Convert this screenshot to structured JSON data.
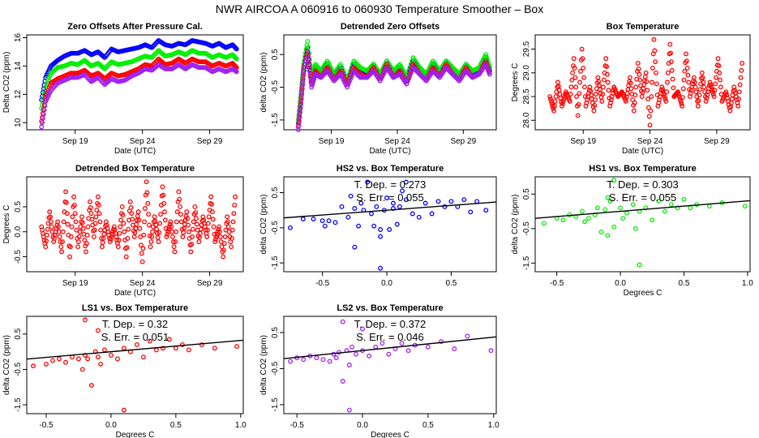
{
  "title": "NWR   AIRCOA A   060916 to 060930   Temperature Smoother – Box",
  "chart_data": [
    {
      "type": "line",
      "title": "Zero Offsets After Pressure Cal.",
      "xlabel": "Date (UTC)",
      "ylabel": "Delta CO2 (ppm)",
      "xlim": [
        15.4,
        31.5
      ],
      "ylim": [
        9.5,
        16.2
      ],
      "xticks": [
        19,
        24,
        29
      ],
      "xticklabels": [
        "Sep 19",
        "Sep 24",
        "Sep 29"
      ],
      "yticks": [
        10,
        12,
        14,
        16
      ],
      "yticklabels": [
        "10",
        "12",
        "14",
        "16"
      ],
      "x": [
        16.5,
        16.8,
        17.2,
        17.7,
        18.2,
        18.7,
        19.2,
        19.7,
        20.2,
        20.7,
        21.2,
        21.7,
        22.2,
        22.7,
        23.2,
        23.7,
        24.2,
        24.7,
        25.2,
        25.7,
        26.2,
        26.7,
        27.2,
        27.7,
        28.2,
        28.7,
        29.2,
        29.7,
        30.2,
        30.7,
        31.0
      ],
      "series": [
        {
          "name": "HS2",
          "color": "#0000ff",
          "values": [
            11.6,
            13.2,
            14.0,
            14.4,
            14.7,
            14.9,
            14.9,
            15.1,
            14.8,
            15.0,
            14.6,
            15.2,
            15.0,
            15.1,
            15.2,
            15.3,
            15.5,
            15.3,
            15.8,
            15.5,
            15.4,
            15.6,
            15.5,
            15.8,
            15.7,
            15.6,
            15.4,
            15.6,
            15.3,
            15.5,
            15.2
          ]
        },
        {
          "name": "HS1",
          "color": "#00ee00",
          "values": [
            11.0,
            12.5,
            13.5,
            13.9,
            14.0,
            14.2,
            14.1,
            14.4,
            14.0,
            14.2,
            13.8,
            14.3,
            14.1,
            14.2,
            14.3,
            14.5,
            14.7,
            14.6,
            15.1,
            14.7,
            14.8,
            15.0,
            14.8,
            15.1,
            14.9,
            14.9,
            14.6,
            14.8,
            14.6,
            14.8,
            14.5
          ]
        },
        {
          "name": "LS1",
          "color": "#ff0000",
          "values": [
            10.1,
            11.8,
            12.8,
            13.1,
            13.3,
            13.5,
            13.5,
            13.7,
            13.3,
            13.5,
            13.1,
            13.5,
            13.3,
            13.4,
            13.6,
            13.8,
            14.1,
            14.0,
            14.5,
            14.1,
            14.2,
            14.5,
            14.2,
            14.5,
            14.3,
            14.3,
            14.0,
            14.2,
            14.0,
            14.2,
            13.9
          ]
        },
        {
          "name": "LS2",
          "color": "#a020f0",
          "values": [
            9.7,
            11.5,
            12.3,
            12.8,
            13.0,
            13.2,
            13.2,
            13.4,
            12.9,
            13.2,
            12.7,
            13.1,
            12.9,
            13.0,
            13.3,
            13.5,
            13.8,
            13.7,
            14.1,
            13.8,
            13.8,
            14.1,
            13.8,
            14.1,
            13.9,
            13.9,
            13.6,
            13.8,
            13.6,
            13.8,
            13.6
          ]
        }
      ]
    },
    {
      "type": "line",
      "title": "Detrended Zero Offsets",
      "xlabel": "Date (UTC)",
      "ylabel": "delta CO2 (ppm)",
      "xlim": [
        15.4,
        31.5
      ],
      "ylim": [
        -1.8,
        1.1
      ],
      "xticks": [
        19,
        24,
        29
      ],
      "xticklabels": [
        "Sep 19",
        "Sep 24",
        "Sep 29"
      ],
      "yticks": [
        0.5,
        -0.5,
        -1.5
      ],
      "yticklabels": [
        "0.5",
        "-0.5",
        "-1.5"
      ],
      "x": [
        16.5,
        16.7,
        16.9,
        17.2,
        17.5,
        17.8,
        18.2,
        18.7,
        19.2,
        19.7,
        20.2,
        20.7,
        21.2,
        21.7,
        22.2,
        22.7,
        23.2,
        23.7,
        24.2,
        24.7,
        25.2,
        25.7,
        26.2,
        26.7,
        27.2,
        27.7,
        28.2,
        28.7,
        29.2,
        29.7,
        30.2,
        30.7,
        31.0
      ],
      "series": [
        {
          "name": "HS2",
          "color": "#0000ff",
          "values": [
            -1.6,
            -0.8,
            0.1,
            0.7,
            -0.3,
            0.1,
            -0.1,
            0.2,
            -0.2,
            0.1,
            -0.4,
            0.2,
            0.0,
            -0.1,
            0.2,
            -0.2,
            0.3,
            -0.1,
            0.1,
            -0.3,
            0.3,
            0.0,
            -0.2,
            0.2,
            -0.1,
            0.3,
            0.0,
            -0.2,
            0.2,
            -0.1,
            0.0,
            0.4,
            0.0
          ]
        },
        {
          "name": "HS1",
          "color": "#00ee00",
          "values": [
            -1.5,
            -0.7,
            0.2,
            0.9,
            -0.2,
            0.2,
            0.0,
            0.3,
            -0.1,
            0.2,
            -0.3,
            0.3,
            0.1,
            0.0,
            0.2,
            -0.1,
            0.3,
            0.0,
            0.2,
            -0.2,
            0.4,
            0.1,
            -0.1,
            0.3,
            0.0,
            0.3,
            0.1,
            -0.1,
            0.2,
            0.0,
            0.1,
            0.5,
            0.1
          ]
        },
        {
          "name": "LS1",
          "color": "#ff0000",
          "values": [
            -1.7,
            -0.9,
            0.0,
            0.6,
            -0.4,
            0.0,
            -0.2,
            0.1,
            -0.3,
            0.0,
            -0.4,
            0.1,
            -0.1,
            -0.2,
            0.1,
            -0.3,
            0.2,
            -0.2,
            0.0,
            -0.4,
            0.2,
            -0.1,
            -0.3,
            0.1,
            -0.2,
            0.2,
            -0.1,
            -0.3,
            0.1,
            -0.2,
            -0.1,
            0.3,
            -0.1
          ]
        },
        {
          "name": "LS2",
          "color": "#a020f0",
          "values": [
            -1.8,
            -1.0,
            -0.1,
            0.5,
            -0.5,
            -0.1,
            -0.2,
            0.0,
            -0.3,
            -0.1,
            -0.5,
            0.0,
            -0.2,
            -0.2,
            0.0,
            -0.3,
            0.1,
            -0.2,
            -0.1,
            -0.4,
            0.1,
            -0.1,
            -0.3,
            0.0,
            -0.2,
            0.1,
            -0.1,
            -0.3,
            0.0,
            -0.2,
            -0.1,
            0.2,
            -0.1
          ]
        }
      ]
    },
    {
      "type": "line",
      "title": "Box Temperature",
      "xlabel": "Date (UTC)",
      "ylabel": "Degrees C",
      "xlim": [
        15.4,
        31.5
      ],
      "ylim": [
        27.8,
        29.8
      ],
      "xticks": [
        19,
        24,
        29
      ],
      "xticklabels": [
        "Sep 19",
        "Sep 24",
        "Sep 29"
      ],
      "yticks": [
        28.0,
        28.5,
        29.0,
        29.5
      ],
      "yticklabels": [
        "28.0",
        "28.5",
        "29.0",
        "29.5"
      ],
      "x": [
        16.5,
        16.8,
        17.1,
        17.4,
        17.7,
        18.0,
        18.3,
        18.6,
        18.9,
        19.2,
        19.5,
        19.8,
        20.1,
        20.4,
        20.7,
        21.0,
        21.3,
        21.6,
        21.9,
        22.2,
        22.5,
        22.8,
        23.1,
        23.4,
        23.7,
        24.0,
        24.3,
        24.6,
        24.9,
        25.2,
        25.5,
        25.8,
        26.1,
        26.4,
        26.7,
        27.0,
        27.3,
        27.6,
        27.9,
        28.2,
        28.5,
        28.8,
        29.1,
        29.4,
        29.7,
        30.0,
        30.3,
        30.6,
        30.9
      ],
      "series": [
        {
          "name": "Box",
          "color": "#ff0000",
          "values": [
            28.5,
            28.2,
            28.8,
            28.3,
            28.6,
            28.4,
            29.3,
            28.1,
            29.5,
            28.3,
            28.7,
            28.2,
            28.9,
            28.4,
            29.3,
            28.3,
            28.7,
            28.5,
            28.6,
            28.4,
            28.9,
            28.2,
            29.2,
            28.5,
            29.0,
            27.9,
            29.7,
            28.3,
            28.7,
            28.4,
            29.6,
            28.5,
            28.6,
            28.3,
            29.4,
            28.5,
            28.9,
            28.3,
            29.0,
            28.4,
            28.8,
            28.5,
            29.3,
            28.4,
            28.6,
            28.2,
            28.7,
            28.3,
            29.2
          ]
        }
      ]
    },
    {
      "type": "line",
      "title": "Detrended Box Temperature",
      "xlabel": "Date (UTC)",
      "ylabel": "Degrees C",
      "xlim": [
        15.4,
        31.5
      ],
      "ylim": [
        -0.8,
        1.1
      ],
      "xticks": [
        19,
        24,
        29
      ],
      "xticklabels": [
        "Sep 19",
        "Sep 24",
        "Sep 29"
      ],
      "yticks": [
        0.5,
        0,
        -0.5
      ],
      "yticklabels": [
        "0.5",
        "0.0",
        "-0.5"
      ],
      "x": [
        16.5,
        16.8,
        17.1,
        17.4,
        17.7,
        18.0,
        18.3,
        18.6,
        18.9,
        19.2,
        19.5,
        19.8,
        20.1,
        20.4,
        20.7,
        21.0,
        21.3,
        21.6,
        21.9,
        22.2,
        22.5,
        22.8,
        23.1,
        23.4,
        23.7,
        24.0,
        24.3,
        24.6,
        24.9,
        25.2,
        25.5,
        25.8,
        26.1,
        26.4,
        26.7,
        27.0,
        27.3,
        27.6,
        27.9,
        28.2,
        28.5,
        28.8,
        29.1,
        29.4,
        29.7,
        30.0,
        30.3,
        30.6,
        30.9
      ],
      "series": [
        {
          "name": "Box",
          "color": "#ff0000",
          "values": [
            0.1,
            -0.3,
            0.4,
            -0.2,
            0.2,
            -0.4,
            0.8,
            -0.5,
            0.7,
            -0.3,
            0.3,
            -0.4,
            0.6,
            -0.1,
            0.7,
            -0.3,
            0.2,
            -0.2,
            0.1,
            -0.3,
            0.5,
            -0.5,
            0.6,
            -0.1,
            0.4,
            -0.6,
            1.0,
            -0.3,
            0.3,
            -0.2,
            0.9,
            -0.1,
            0.2,
            -0.4,
            0.8,
            -0.1,
            0.4,
            -0.4,
            0.5,
            -0.2,
            0.3,
            -0.1,
            0.7,
            -0.2,
            0.1,
            -0.5,
            0.3,
            -0.3,
            0.7
          ]
        }
      ]
    },
    {
      "type": "scatter",
      "title": "HS2 vs. Box Temperature",
      "xlabel": "",
      "ylabel": "delta CO2 (ppm)",
      "xlim": [
        -0.8,
        0.85
      ],
      "ylim": [
        -1.75,
        0.95
      ],
      "xticks": [
        -0.5,
        0,
        0.5
      ],
      "xticklabels": [
        "-0.5",
        "0.0",
        "0.5"
      ],
      "yticks": [
        0.5,
        -0.5,
        -1.5
      ],
      "yticklabels": [
        "0.5",
        "-0.5",
        "-1.5"
      ],
      "color": "#0000ff",
      "tdep_label": "T. Dep. =  0.273",
      "serr_label": "S. Err. =  0.055",
      "slope": 0.273,
      "intercept": 0.0,
      "x": [
        -0.75,
        -0.65,
        -0.57,
        -0.5,
        -0.48,
        -0.45,
        -0.4,
        -0.35,
        -0.3,
        -0.28,
        -0.25,
        -0.22,
        -0.2,
        -0.18,
        -0.15,
        -0.12,
        -0.1,
        -0.08,
        -0.05,
        -0.05,
        -0.02,
        0.0,
        0.02,
        0.05,
        0.08,
        0.1,
        0.12,
        0.15,
        0.2,
        0.25,
        0.3,
        0.35,
        0.4,
        0.45,
        0.5,
        0.55,
        0.6,
        0.65,
        0.7,
        0.77,
        -0.25,
        0.15,
        -0.05,
        0.05
      ],
      "y": [
        -0.5,
        -0.25,
        -0.25,
        -0.3,
        -0.45,
        -0.3,
        -0.35,
        0.1,
        -0.2,
        0.4,
        -1.05,
        -0.45,
        0.2,
        0.0,
        0.8,
        -0.1,
        -0.45,
        0.1,
        -0.55,
        -0.75,
        0.0,
        0.35,
        -0.55,
        0.05,
        -0.4,
        0.1,
        0.55,
        0.8,
        -0.1,
        -0.2,
        0.2,
        -0.1,
        0.25,
        0.1,
        0.25,
        0.1,
        0.3,
        -0.05,
        0.25,
        0.0,
        0.05,
        0.3,
        -1.65,
        0.2
      ]
    },
    {
      "type": "scatter",
      "title": "HS1 vs. Box Temperature",
      "xlabel": "Degrees C",
      "ylabel": "delta CO2 (ppm)",
      "xlim": [
        -0.67,
        1.02
      ],
      "ylim": [
        -1.75,
        1.0
      ],
      "xticks": [
        -0.5,
        0,
        0.5,
        1.0
      ],
      "xticklabels": [
        "-0.5",
        "0.0",
        "0.5",
        "1.0"
      ],
      "yticks": [
        0.5,
        -0.5,
        -1.5
      ],
      "yticklabels": [
        "0.5",
        "-0.5",
        "-1.5"
      ],
      "color": "#00ee00",
      "tdep_label": "T. Dep. =  0.303",
      "serr_label": "S. Err. =  0.055",
      "slope": 0.303,
      "intercept": 0.0,
      "x": [
        -0.6,
        -0.5,
        -0.45,
        -0.4,
        -0.35,
        -0.3,
        -0.28,
        -0.25,
        -0.2,
        -0.18,
        -0.15,
        -0.12,
        -0.1,
        -0.08,
        -0.05,
        0.0,
        0.02,
        0.05,
        0.1,
        0.12,
        0.15,
        0.2,
        0.25,
        0.3,
        0.35,
        0.4,
        0.45,
        0.5,
        0.55,
        0.6,
        0.7,
        0.8,
        0.98,
        -0.05,
        0.15,
        -0.1
      ],
      "y": [
        -0.35,
        -0.2,
        -0.25,
        -0.1,
        -0.15,
        0.0,
        -0.3,
        -0.2,
        -0.1,
        0.1,
        -0.6,
        0.05,
        -0.7,
        0.3,
        -0.45,
        0.1,
        -0.2,
        -0.05,
        0.2,
        -0.5,
        0.0,
        0.1,
        -0.25,
        0.3,
        0.0,
        0.2,
        0.1,
        0.35,
        0.1,
        0.2,
        0.15,
        0.25,
        0.15,
        0.9,
        -1.55,
        0.4
      ]
    },
    {
      "type": "scatter",
      "title": "LS1 vs. Box Temperature",
      "xlabel": "Degrees C",
      "ylabel": "delta CO2 (ppm)",
      "xlim": [
        -0.65,
        1.02
      ],
      "ylim": [
        -1.75,
        1.0
      ],
      "xticks": [
        -0.5,
        0,
        0.5,
        1.0
      ],
      "xticklabels": [
        "-0.5",
        "0.0",
        "0.5",
        "1.0"
      ],
      "yticks": [
        0.5,
        -0.5,
        -1.5
      ],
      "yticklabels": [
        "0.5",
        "-0.5",
        "-1.5"
      ],
      "color": "#ff0000",
      "tdep_label": "T. Dep. =  0.32",
      "serr_label": "S. Err. =  0.051",
      "slope": 0.32,
      "intercept": 0.0,
      "x": [
        -0.6,
        -0.5,
        -0.45,
        -0.4,
        -0.35,
        -0.3,
        -0.25,
        -0.22,
        -0.2,
        -0.18,
        -0.15,
        -0.12,
        -0.1,
        -0.08,
        -0.05,
        0.0,
        0.05,
        0.1,
        0.15,
        0.2,
        0.25,
        0.3,
        0.35,
        0.4,
        0.45,
        0.5,
        0.55,
        0.6,
        0.7,
        0.8,
        0.97,
        -0.2,
        0.1,
        -0.1
      ],
      "y": [
        -0.4,
        -0.35,
        -0.25,
        -0.2,
        -0.3,
        -0.15,
        -0.2,
        -0.5,
        -0.1,
        -0.2,
        -0.95,
        0.0,
        -0.15,
        -0.35,
        0.05,
        -0.1,
        -0.2,
        0.1,
        0.0,
        0.2,
        -0.15,
        0.3,
        0.05,
        0.1,
        0.35,
        0.1,
        0.2,
        0.05,
        0.2,
        0.1,
        0.15,
        0.9,
        -1.65,
        0.6
      ]
    },
    {
      "type": "scatter",
      "title": "LS2 vs. Box Temperature",
      "xlabel": "Degrees C",
      "ylabel": "delta CO2 (ppm)",
      "xlim": [
        -0.6,
        1.02
      ],
      "ylim": [
        -1.75,
        0.95
      ],
      "xticks": [
        -0.5,
        0,
        0.5,
        1.0
      ],
      "xticklabels": [
        "-0.5",
        "0.0",
        "0.5",
        "1.0"
      ],
      "yticks": [
        0.5,
        -0.5,
        -1.5
      ],
      "yticklabels": [
        "0.5",
        "-0.5",
        "-1.5"
      ],
      "color": "#a020f0",
      "tdep_label": "T. Dep. =  0.372",
      "serr_label": "S. Err. =  0.046",
      "slope": 0.372,
      "intercept": 0.0,
      "x": [
        -0.55,
        -0.5,
        -0.45,
        -0.4,
        -0.35,
        -0.3,
        -0.25,
        -0.22,
        -0.2,
        -0.18,
        -0.15,
        -0.12,
        -0.1,
        -0.08,
        -0.05,
        0.0,
        0.05,
        0.1,
        0.15,
        0.2,
        0.25,
        0.3,
        0.35,
        0.4,
        0.5,
        0.6,
        0.7,
        0.8,
        0.98,
        -0.15,
        0.0,
        -0.1
      ],
      "y": [
        -0.3,
        -0.2,
        -0.25,
        -0.15,
        -0.2,
        -0.25,
        -0.3,
        -0.1,
        -0.2,
        -0.05,
        -0.85,
        0.0,
        -0.4,
        0.1,
        -0.1,
        0.0,
        -0.15,
        0.1,
        0.2,
        -0.1,
        0.05,
        0.2,
        0.0,
        0.15,
        0.1,
        0.25,
        0.05,
        0.4,
        0.0,
        0.8,
        0.6,
        -1.65
      ]
    }
  ]
}
